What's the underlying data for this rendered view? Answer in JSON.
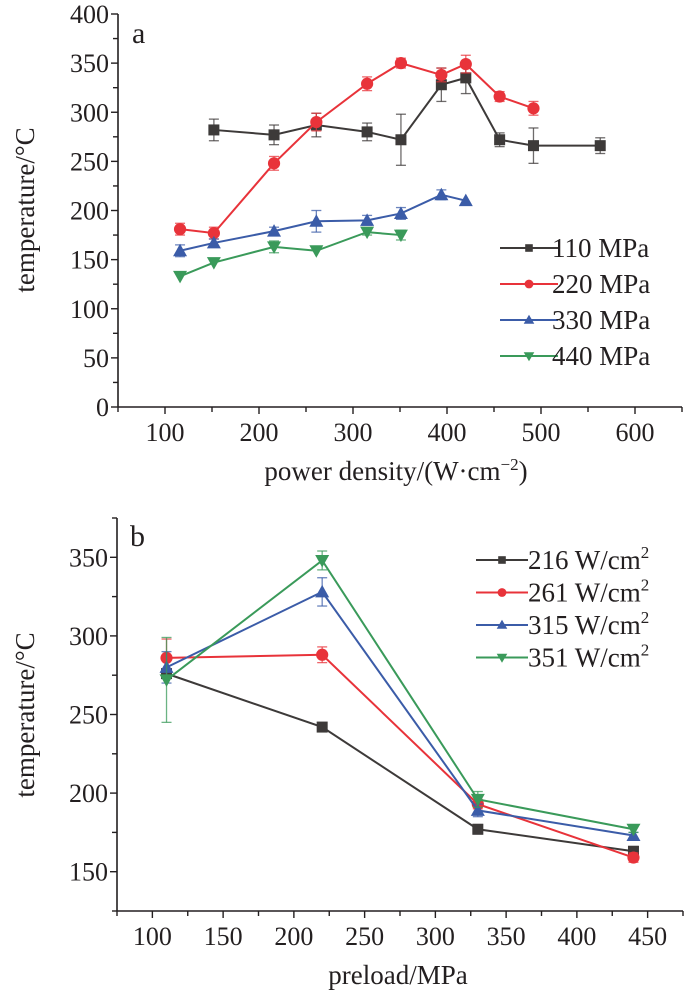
{
  "chart_data": [
    {
      "type": "line",
      "panel_label": "a",
      "title": "",
      "xlabel": "power density/(W·cm",
      "xlabel_sup": "−2",
      "xlabel_tail": ")",
      "ylabel": "temperature/°C",
      "xlim": [
        50,
        650
      ],
      "ylim": [
        0,
        400
      ],
      "xticks": [
        100,
        200,
        300,
        400,
        500,
        600
      ],
      "yticks": [
        0,
        50,
        100,
        150,
        200,
        250,
        300,
        350,
        400
      ],
      "legend_position": "right",
      "series": [
        {
          "name": "110 MPa",
          "color": "#3d3a39",
          "marker": "square",
          "x": [
            152,
            216,
            261,
            315,
            351,
            394,
            420,
            456,
            492,
            563
          ],
          "y": [
            282,
            277,
            287,
            280,
            272,
            328,
            335,
            272,
            266,
            266
          ],
          "err": [
            11,
            10,
            12,
            9,
            26,
            17,
            16,
            7,
            18,
            8
          ]
        },
        {
          "name": "220 MPa",
          "color": "#e8333a",
          "marker": "circle",
          "x": [
            116,
            152,
            216,
            261,
            315,
            351,
            394,
            420,
            456,
            492
          ],
          "y": [
            181,
            177,
            248,
            290,
            329,
            350,
            338,
            349,
            316,
            304
          ],
          "err": [
            6,
            6,
            7,
            9,
            7,
            5,
            7,
            9,
            5,
            7
          ]
        },
        {
          "name": "330 MPa",
          "color": "#3b5ca8",
          "marker": "triangle-up",
          "x": [
            116,
            152,
            216,
            261,
            315,
            351,
            394,
            420
          ],
          "y": [
            159,
            167,
            179,
            189,
            190,
            197,
            216,
            210
          ],
          "err": [
            6,
            4,
            4,
            11,
            5,
            6,
            5,
            0
          ]
        },
        {
          "name": "440 MPa",
          "color": "#3a9a5a",
          "marker": "triangle-down",
          "x": [
            116,
            152,
            216,
            261,
            315,
            351
          ],
          "y": [
            133,
            147,
            163,
            159,
            178,
            175
          ],
          "err": [
            0,
            0,
            6,
            0,
            3,
            5
          ]
        }
      ]
    },
    {
      "type": "line",
      "panel_label": "b",
      "title": "",
      "xlabel": "preload/MPa",
      "ylabel": "temperature/°C",
      "xlim": [
        75,
        475
      ],
      "ylim": [
        125,
        375
      ],
      "xticks": [
        100,
        150,
        200,
        250,
        300,
        350,
        400,
        450
      ],
      "yticks": [
        150,
        200,
        250,
        300,
        350
      ],
      "legend_position": "top-right",
      "series": [
        {
          "name": "216 W/cm",
          "name_sup": "2",
          "color": "#3d3a39",
          "marker": "square",
          "x": [
            110,
            220,
            330,
            440
          ],
          "y": [
            276,
            242,
            177,
            163
          ],
          "err": [
            0,
            0,
            3,
            3
          ]
        },
        {
          "name": "261 W/cm",
          "name_sup": "2",
          "color": "#e8333a",
          "marker": "circle",
          "x": [
            110,
            220,
            330,
            440
          ],
          "y": [
            286,
            288,
            193,
            159
          ],
          "err": [
            12,
            5,
            3,
            3
          ]
        },
        {
          "name": "315 W/cm",
          "name_sup": "2",
          "color": "#3b5ca8",
          "marker": "triangle-up",
          "x": [
            110,
            220,
            330,
            440
          ],
          "y": [
            280,
            328,
            189,
            173
          ],
          "err": [
            10,
            9,
            4,
            2
          ]
        },
        {
          "name": "351 W/cm",
          "name_sup": "2",
          "color": "#3a9a5a",
          "marker": "triangle-down",
          "x": [
            110,
            220,
            330,
            440
          ],
          "y": [
            272,
            348,
            196,
            177
          ],
          "err": [
            27,
            6,
            5,
            2
          ]
        }
      ]
    }
  ]
}
